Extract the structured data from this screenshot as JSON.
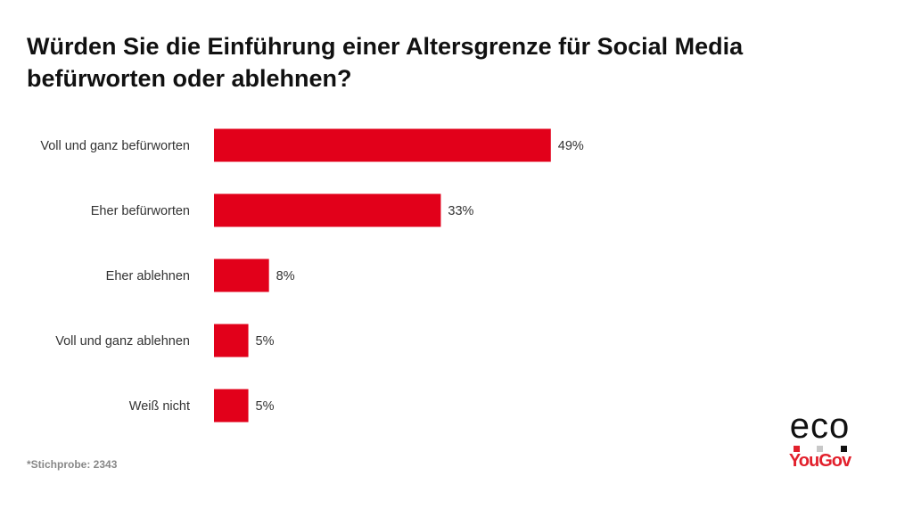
{
  "chart_data": {
    "type": "bar",
    "orientation": "horizontal",
    "title": "Würden Sie die Einführung einer Altersgrenze für Social Media befürworten oder ablehnen?",
    "categories": [
      "Voll und ganz befürworten",
      "Eher befürworten",
      "Eher ablehnen",
      "Voll und ganz ablehnen",
      "Weiß nicht"
    ],
    "values": [
      49,
      33,
      8,
      5,
      5
    ],
    "value_labels": [
      "49%",
      "33%",
      "8%",
      "5%",
      "5%"
    ],
    "unit": "%",
    "xlim": [
      0,
      100
    ],
    "grid": false,
    "bar_color": "#e2001a"
  },
  "footnote": "*Stichprobe: 2343",
  "logo": {
    "eco": "eco",
    "yougov": "YouGov",
    "dot_colors": [
      "#e2202c",
      "#c8c8c8",
      "#111111"
    ]
  }
}
